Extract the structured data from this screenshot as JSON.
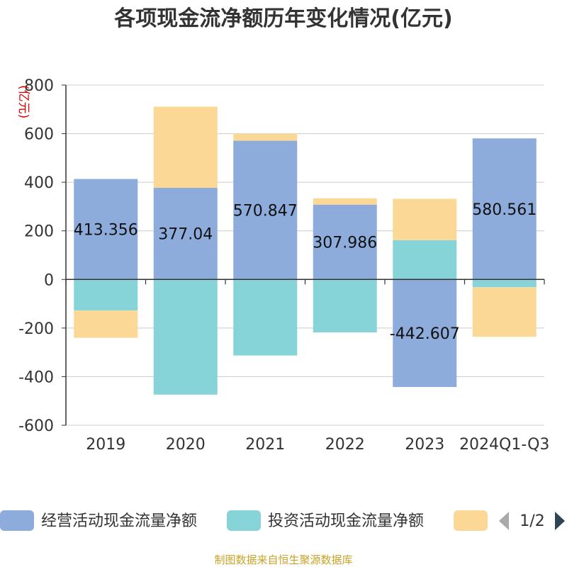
{
  "chart_data": {
    "type": "bar",
    "stacked": true,
    "title": "各项现金流净额历年变化情况(亿元)",
    "ylabel": "(亿元)",
    "xlabel": "",
    "ylim": [
      -600,
      800
    ],
    "yticks": [
      -600,
      -400,
      -200,
      0,
      200,
      400,
      600,
      800
    ],
    "grid": true,
    "legend_position": "bottom",
    "categories": [
      "2019",
      "2020",
      "2021",
      "2022",
      "2023",
      "2024Q1-Q3"
    ],
    "series": [
      {
        "name": "经营活动现金流量净额",
        "color": "#8eacdb",
        "values": [
          413.356,
          377.04,
          570.847,
          307.986,
          -442.607,
          580.561
        ],
        "labels": [
          "413.356",
          "377.04",
          "570.847",
          "307.986",
          "-442.607",
          "580.561"
        ]
      },
      {
        "name": "投资活动现金流量净额",
        "color": "#86d4d8",
        "values": [
          -128,
          -474,
          -313,
          -218,
          162,
          -32
        ]
      },
      {
        "color": "#fcd897",
        "values": [
          -112,
          334,
          29,
          26,
          170,
          -204
        ]
      }
    ]
  },
  "legend": {
    "page": "1/2"
  },
  "footer": "制图数据来自恒生聚源数据库"
}
